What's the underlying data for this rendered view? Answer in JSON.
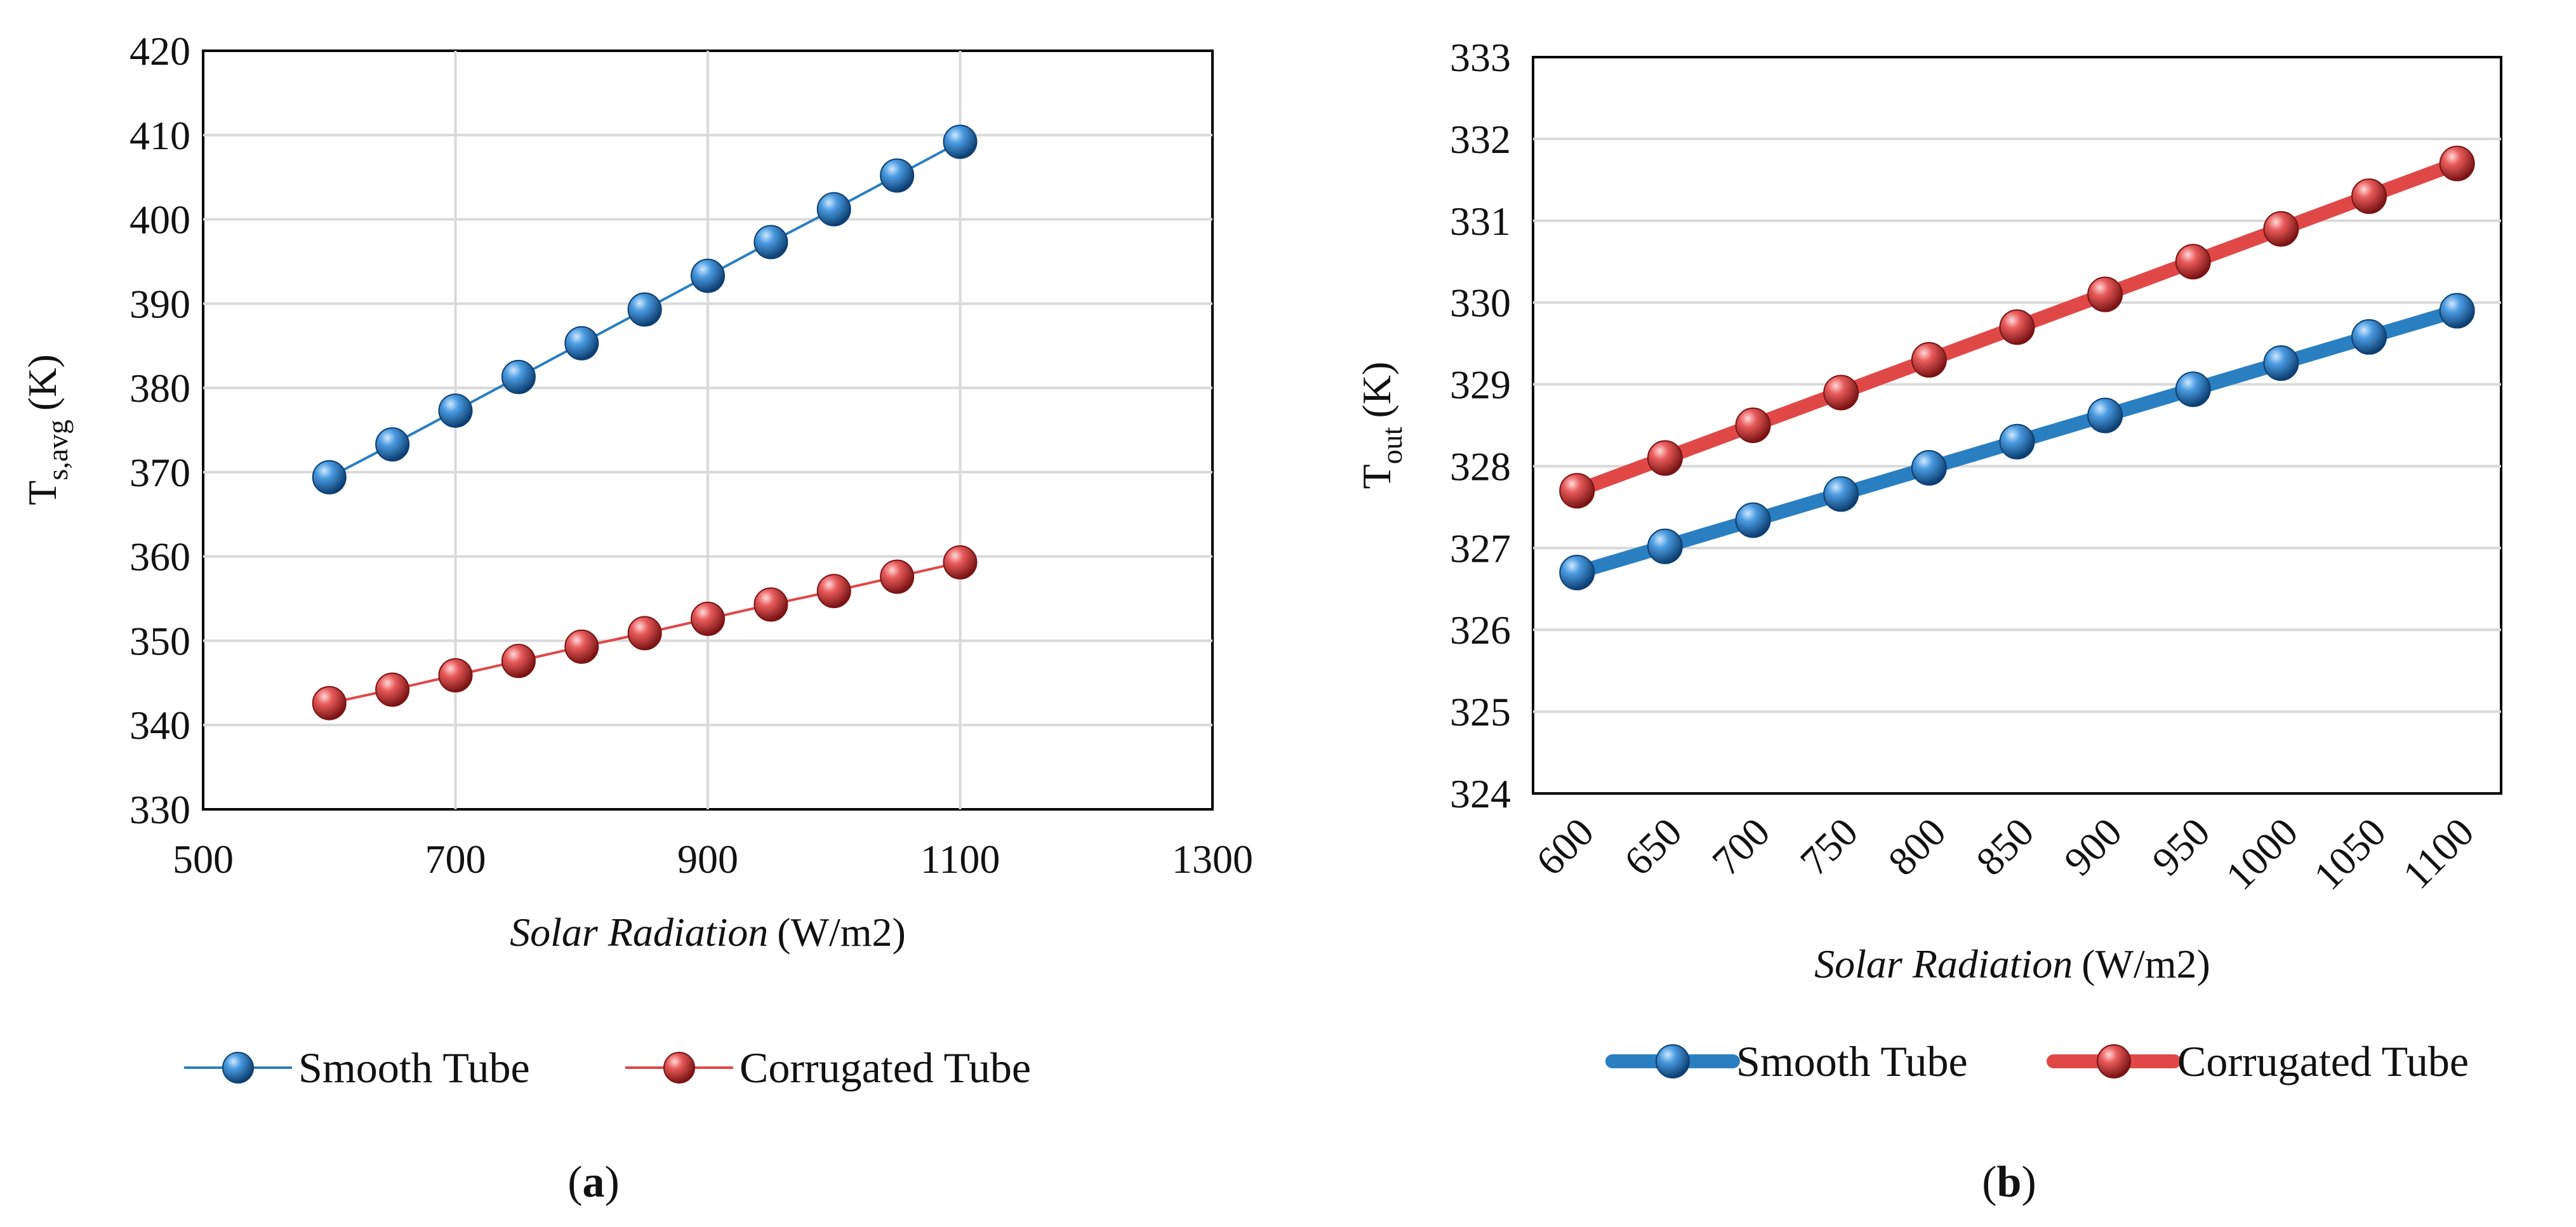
{
  "colors": {
    "smooth": "#2a7fc1",
    "corrugated": "#e04848",
    "grid": "#d9d9d9",
    "frame": "#000000"
  },
  "chart_data": [
    {
      "type": "scatter",
      "panel_label": "a",
      "xlabel_italic": "Solar Radiation",
      "xlabel_unit": "(W/m2)",
      "ylabel_main": "T",
      "ylabel_sub": "s,avg",
      "ylabel_unit": "(K)",
      "xlim": [
        500,
        1300
      ],
      "ylim": [
        330,
        420
      ],
      "xticks": [
        500,
        700,
        900,
        1100,
        1300
      ],
      "yticks": [
        330,
        340,
        350,
        360,
        370,
        380,
        390,
        400,
        410,
        420
      ],
      "grid": true,
      "legend": "bottom",
      "series": [
        {
          "name": "Smooth Tube",
          "x": [
            600,
            650,
            700,
            750,
            800,
            850,
            900,
            950,
            1000,
            1050,
            1100
          ],
          "y": [
            369.4,
            373.3,
            377.3,
            381.3,
            385.3,
            389.3,
            393.3,
            397.3,
            401.2,
            405.2,
            409.2
          ]
        },
        {
          "name": "Corrugated Tube",
          "x": [
            600,
            650,
            700,
            750,
            800,
            850,
            900,
            950,
            1000,
            1050,
            1100
          ],
          "y": [
            342.6,
            344.2,
            345.9,
            347.6,
            349.3,
            350.9,
            352.6,
            354.3,
            355.9,
            357.6,
            359.3
          ]
        }
      ]
    },
    {
      "type": "line",
      "panel_label": "b",
      "xlabel_italic": "Solar Radiation",
      "xlabel_unit": "(W/m2)",
      "ylabel_main": "T",
      "ylabel_sub": "out",
      "ylabel_unit": "(K)",
      "categories": [
        "600",
        "650",
        "700",
        "750",
        "800",
        "850",
        "900",
        "950",
        "1000",
        "1050",
        "1100"
      ],
      "ylim": [
        324,
        333
      ],
      "yticks": [
        324,
        325,
        326,
        327,
        328,
        329,
        330,
        331,
        332,
        333
      ],
      "grid": true,
      "legend": "bottom",
      "series": [
        {
          "name": "Smooth Tube",
          "values": [
            326.7,
            327.02,
            327.34,
            327.66,
            327.98,
            328.3,
            328.62,
            328.94,
            329.26,
            329.58,
            329.9
          ]
        },
        {
          "name": "Corrugated Tube",
          "values": [
            327.7,
            328.1,
            328.5,
            328.9,
            329.3,
            329.7,
            330.1,
            330.5,
            330.9,
            331.3,
            331.7
          ]
        }
      ]
    }
  ]
}
